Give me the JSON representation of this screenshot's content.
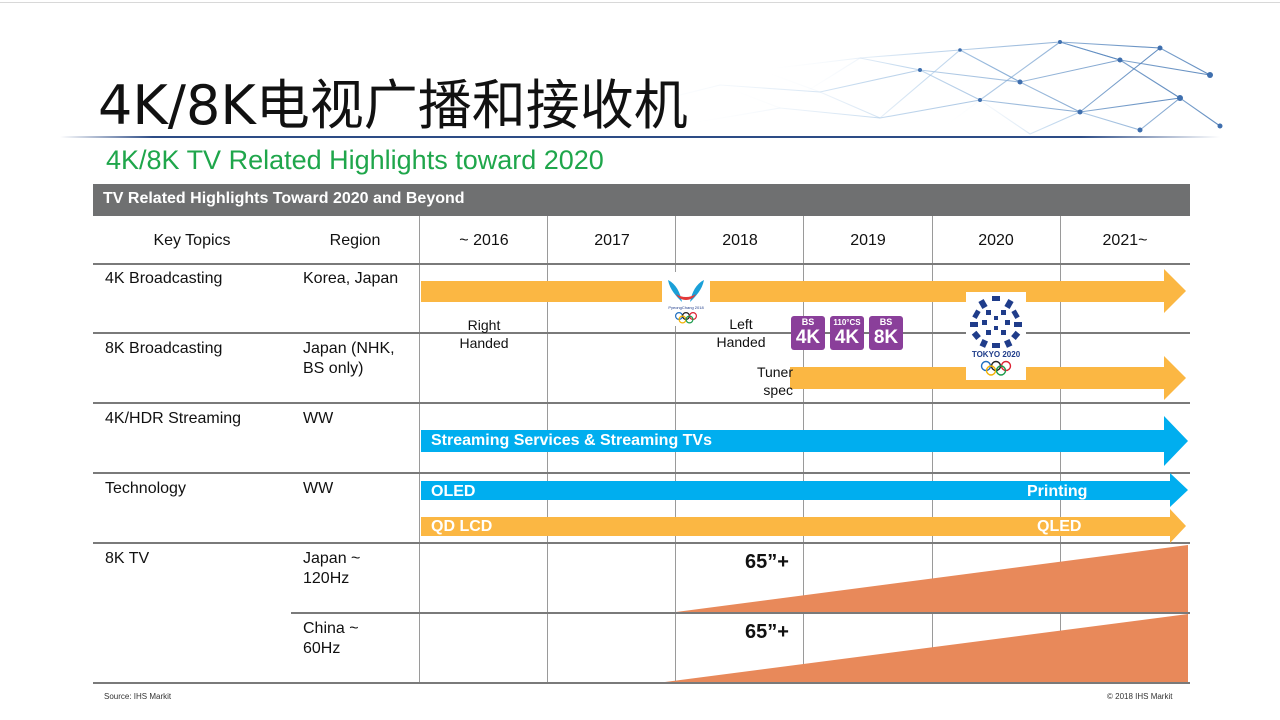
{
  "title": "4K/8K电视广播和接收机",
  "subtitle": "4K/8K TV Related Highlights toward 2020",
  "table": {
    "banner": "TV Related Highlights Toward 2020 and Beyond",
    "columns": [
      "Key Topics",
      "Region",
      "~ 2016",
      "2017",
      "2018",
      "2019",
      "2020",
      "2021~"
    ],
    "rows": [
      {
        "topic": "4K Broadcasting",
        "region": "Korea, Japan"
      },
      {
        "topic": "8K Broadcasting",
        "region": "Japan (NHK, BS only)"
      },
      {
        "topic": "4K/HDR Streaming",
        "region": "WW"
      },
      {
        "topic": "Technology",
        "region": "WW"
      },
      {
        "topic": "8K TV",
        "region": "Japan ~ 120Hz"
      },
      {
        "topic": "",
        "region": "China ~ 60Hz"
      }
    ]
  },
  "notes": {
    "right_handed": "Right Handed",
    "left_handed": "Left Handed",
    "tuner_spec": "Tuner spec"
  },
  "arrows": {
    "streaming": "Streaming Services & Streaming TVs",
    "oled": "OLED",
    "printing": "Printing",
    "qd_lcd": "QD  LCD",
    "qled": "QLED"
  },
  "sizes": {
    "japan": "65”+",
    "china": "65”+"
  },
  "badges": [
    {
      "top": "BS",
      "big": "4K"
    },
    {
      "top": "110°CS",
      "big": "4K"
    },
    {
      "top": "BS",
      "big": "8K"
    }
  ],
  "logos": {
    "pyeongchang": "PyeongChang 2018",
    "tokyo": "TOKYO 2020"
  },
  "footer": {
    "source": "Source: IHS Markit",
    "copyright": "© 2018 IHS Markit"
  },
  "colors": {
    "title_green": "#1fa64b",
    "banner_gray": "#6f7071",
    "orange_arrow": "#fbb743",
    "blue_arrow": "#00aeef",
    "wedge_orange": "#e8895a",
    "olympic_blue": "#1f3c8a"
  }
}
